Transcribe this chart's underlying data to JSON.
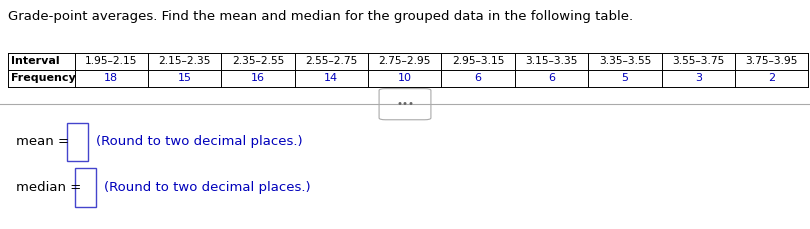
{
  "title": "Grade-point averages. Find the mean and median for the grouped data in the following table.",
  "intervals": [
    "1.95–2.15",
    "2.15–2.35",
    "2.35–2.55",
    "2.55–2.75",
    "2.75–2.95",
    "2.95–3.15",
    "3.15–3.35",
    "3.35–3.55",
    "3.55–3.75",
    "3.75–3.95"
  ],
  "frequencies": [
    "18",
    "15",
    "16",
    "14",
    "10",
    "6",
    "6",
    "5",
    "3",
    "2"
  ],
  "row_labels": [
    "Interval",
    "Frequency"
  ],
  "mean_label": "mean = ",
  "median_label": "median = ",
  "round_note": "(Round to two decimal places.)",
  "title_color": "#000000",
  "table_header_color": "#000000",
  "table_freq_color": "#0000bb",
  "round_note_color": "#0000bb",
  "mean_median_label_color": "#000000",
  "bg_color": "#ffffff",
  "table_border_color": "#000000",
  "divider_color": "#aaaaaa",
  "box_border_color": "#4444cc",
  "title_fontsize": 9.5,
  "table_fontsize": 8.0,
  "label_fontsize": 9.5,
  "note_fontsize": 9.5,
  "dots_fontsize": 7.5
}
